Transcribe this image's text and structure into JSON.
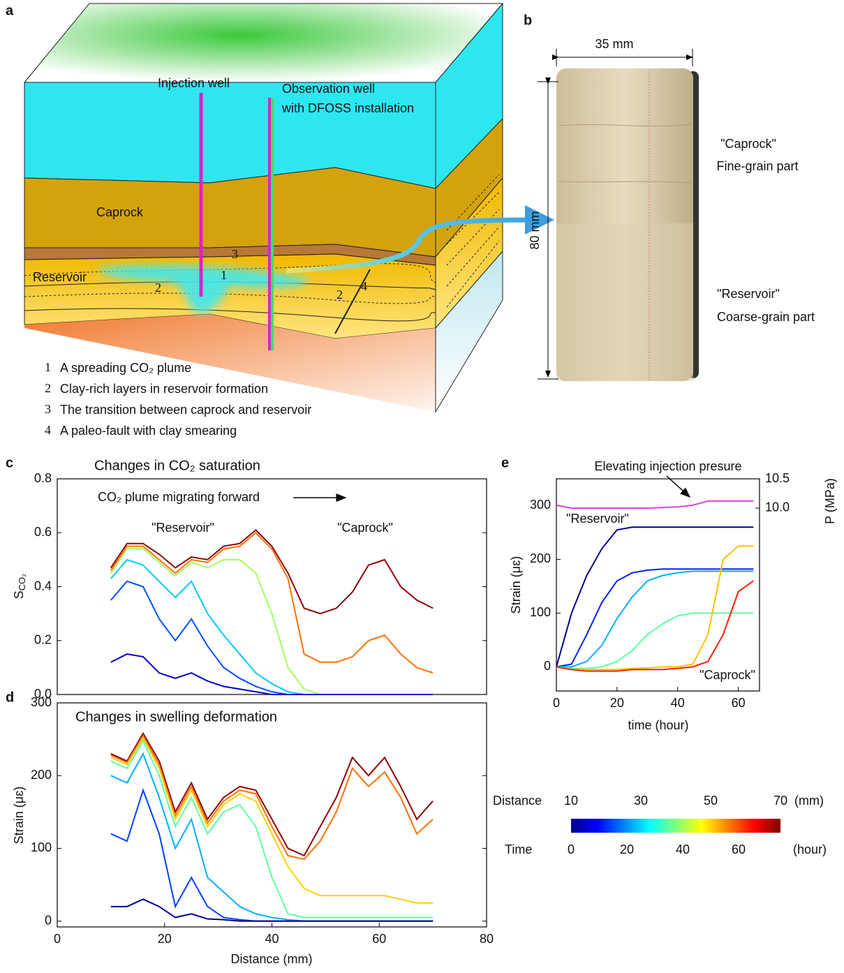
{
  "panel_labels": [
    "a",
    "b",
    "c",
    "d",
    "e"
  ],
  "diagram": {
    "injection_well": "Injection well",
    "observation_well": [
      "Observation well",
      "with DFOSS installation"
    ],
    "caprock": "Caprock",
    "reservoir": "Reservoir",
    "markers": [
      "3",
      "1",
      "2",
      "2",
      "4"
    ],
    "legend": [
      {
        "number": "1",
        "text": "A spreading CO₂ plume"
      },
      {
        "number": "2",
        "text": "Clay-rich layers in reservoir formation"
      },
      {
        "number": "3",
        "text": "The transition between caprock and reservoir"
      },
      {
        "number": "4",
        "text": "A paleo-fault with clay smearing"
      }
    ]
  },
  "sample": {
    "width": "35 mm",
    "height": "80 mm",
    "caprock": [
      "\"Caprock\"",
      "Fine-grain part"
    ],
    "reservoir": [
      "\"Reservoir\"",
      "Coarse-grain part"
    ]
  },
  "chart_data": [
    {
      "type": "line",
      "title": "Changes in CO₂ saturation",
      "ylabel": "S",
      "ylabel_sub": "CO₂",
      "annotations": [
        "CO₂ plume migrating forward",
        "\"Reservoir\"",
        "\"Caprock\""
      ],
      "x": [
        10,
        13,
        16,
        19,
        22,
        25,
        28,
        31,
        34,
        37,
        40,
        43,
        46,
        49,
        52,
        55,
        58,
        61,
        64,
        67,
        70
      ],
      "xlim": [
        0,
        80
      ],
      "ylim": [
        0,
        0.8
      ],
      "yticks": [
        {
          "value": 0,
          "label": "0.0"
        },
        0.2,
        0.4,
        0.6,
        0.8
      ],
      "series": [
        {
          "color": "#900000",
          "values": [
            0.47,
            0.56,
            0.56,
            0.52,
            0.47,
            0.51,
            0.5,
            0.55,
            0.56,
            0.61,
            0.55,
            0.45,
            0.32,
            0.3,
            0.32,
            0.38,
            0.48,
            0.5,
            0.4,
            0.35,
            0.32
          ]
        },
        {
          "color": "#ff7000",
          "values": [
            0.46,
            0.55,
            0.55,
            0.5,
            0.45,
            0.5,
            0.49,
            0.54,
            0.55,
            0.6,
            0.54,
            0.43,
            0.15,
            0.12,
            0.12,
            0.14,
            0.2,
            0.22,
            0.15,
            0.1,
            0.08
          ]
        },
        {
          "color": "#a0ff60",
          "values": [
            0.45,
            0.54,
            0.54,
            0.49,
            0.44,
            0.49,
            0.47,
            0.5,
            0.5,
            0.45,
            0.3,
            0.1,
            0.02,
            0,
            0,
            0,
            0,
            0,
            0,
            0,
            0
          ]
        },
        {
          "color": "#00c8ff",
          "values": [
            0.43,
            0.5,
            0.48,
            0.42,
            0.36,
            0.42,
            0.3,
            0.22,
            0.15,
            0.08,
            0.04,
            0.01,
            0,
            0,
            0,
            0,
            0,
            0,
            0,
            0,
            0
          ]
        },
        {
          "color": "#0050ff",
          "values": [
            0.35,
            0.42,
            0.4,
            0.28,
            0.2,
            0.28,
            0.18,
            0.1,
            0.06,
            0.03,
            0.01,
            0,
            0,
            0,
            0,
            0,
            0,
            0,
            0,
            0,
            0
          ]
        },
        {
          "color": "#0000c8",
          "values": [
            0.12,
            0.15,
            0.14,
            0.08,
            0.06,
            0.08,
            0.05,
            0.03,
            0.02,
            0.01,
            0,
            0,
            0,
            0,
            0,
            0,
            0,
            0,
            0,
            0,
            0
          ]
        }
      ]
    },
    {
      "type": "line",
      "title": "Changes in swelling deformation",
      "ylabel": "Strain (μɛ)",
      "xlabel": "Distance (mm)",
      "x": [
        10,
        13,
        16,
        19,
        22,
        25,
        28,
        31,
        34,
        37,
        40,
        43,
        46,
        49,
        52,
        55,
        58,
        61,
        64,
        67,
        70
      ],
      "xlim": [
        0,
        80
      ],
      "xticks": [
        0,
        20,
        40,
        60,
        80
      ],
      "ylim": [
        -8,
        300
      ],
      "yticks": [
        0,
        100,
        200,
        300
      ],
      "series": [
        {
          "color": "#900000",
          "values": [
            230,
            220,
            258,
            220,
            150,
            190,
            140,
            170,
            185,
            180,
            140,
            100,
            90,
            130,
            170,
            225,
            200,
            225,
            185,
            140,
            165
          ]
        },
        {
          "color": "#ff7000",
          "values": [
            228,
            218,
            255,
            215,
            145,
            185,
            135,
            165,
            180,
            175,
            130,
            90,
            85,
            110,
            150,
            210,
            185,
            205,
            170,
            120,
            140
          ]
        },
        {
          "color": "#ffd000",
          "values": [
            225,
            215,
            252,
            210,
            140,
            180,
            130,
            160,
            175,
            165,
            120,
            75,
            45,
            35,
            35,
            35,
            35,
            35,
            30,
            25,
            25
          ]
        },
        {
          "color": "#60ffa0",
          "values": [
            220,
            210,
            248,
            200,
            130,
            170,
            120,
            150,
            160,
            130,
            60,
            10,
            5,
            5,
            5,
            5,
            5,
            5,
            5,
            5,
            5
          ]
        },
        {
          "color": "#00b0ff",
          "values": [
            200,
            190,
            230,
            170,
            100,
            140,
            60,
            40,
            20,
            10,
            5,
            2,
            0,
            0,
            0,
            0,
            0,
            0,
            0,
            0,
            0
          ]
        },
        {
          "color": "#0040ff",
          "values": [
            120,
            110,
            180,
            120,
            20,
            60,
            20,
            5,
            2,
            0,
            0,
            0,
            0,
            0,
            0,
            0,
            0,
            0,
            0,
            0,
            0
          ]
        },
        {
          "color": "#000090",
          "values": [
            20,
            20,
            30,
            20,
            5,
            10,
            3,
            2,
            0,
            0,
            0,
            0,
            0,
            0,
            0,
            0,
            0,
            0,
            0,
            0,
            0
          ]
        }
      ]
    },
    {
      "type": "line",
      "ylabel": "Strain (μɛ)",
      "y2label": "P (MPa)",
      "xlabel": "time (hour)",
      "annotations": [
        "Elevating injection presure",
        "\"Reservoir\"",
        "\"Caprock\""
      ],
      "x": [
        0,
        5,
        10,
        15,
        20,
        25,
        30,
        35,
        40,
        45,
        50,
        55,
        60,
        65
      ],
      "xlim": [
        0,
        67
      ],
      "xticks": [
        0,
        20,
        40,
        60
      ],
      "ylim": [
        -45,
        350
      ],
      "yticks": [
        0,
        100,
        200,
        300
      ],
      "y2lim": [
        6.88,
        10.5
      ],
      "y2ticks": [
        {
          "value": 10,
          "label": "10.0"
        },
        10.5
      ],
      "series": [
        {
          "color": "#000090",
          "values": [
            0,
            100,
            170,
            220,
            255,
            260,
            260,
            260,
            260,
            260,
            260,
            260,
            260,
            260
          ]
        },
        {
          "color": "#0020ff",
          "values": [
            0,
            5,
            60,
            120,
            160,
            175,
            180,
            182,
            182,
            182,
            182,
            182,
            182,
            182
          ]
        },
        {
          "color": "#00b0ff",
          "values": [
            0,
            0,
            10,
            40,
            90,
            130,
            160,
            170,
            175,
            178,
            178,
            178,
            178,
            178
          ]
        },
        {
          "color": "#60ffa0",
          "values": [
            0,
            -3,
            -3,
            0,
            10,
            30,
            60,
            80,
            95,
            100,
            100,
            100,
            100,
            100
          ]
        },
        {
          "color": "#ffc000",
          "values": [
            0,
            -5,
            -5,
            -5,
            -5,
            -3,
            -2,
            0,
            0,
            5,
            60,
            200,
            225,
            225
          ]
        },
        {
          "color": "#ff2000",
          "values": [
            0,
            -5,
            -8,
            -8,
            -8,
            -5,
            -5,
            -5,
            -3,
            0,
            10,
            60,
            140,
            160
          ]
        },
        {
          "color": "#e040e0",
          "axis": "y2",
          "values": [
            10.05,
            10.0,
            10.0,
            10.0,
            10.0,
            10.0,
            10.0,
            10.01,
            10.02,
            10.05,
            10.12,
            10.12,
            10.12,
            10.12
          ]
        }
      ]
    }
  ],
  "colorbar": {
    "colors": [
      "#00008f",
      "#0000ff",
      "#0080ff",
      "#00ffff",
      "#80ff80",
      "#ffff00",
      "#ff8000",
      "#ff0000",
      "#800000"
    ],
    "distance_label": "Distance",
    "distance_lim": [
      10,
      70
    ],
    "distance_ticks": [
      10,
      30,
      50,
      70
    ],
    "distance_unit": "(mm)",
    "time_label": "Time",
    "time_lim": [
      0,
      75
    ],
    "time_ticks": [
      0,
      20,
      40,
      60
    ],
    "time_unit": "(hour)"
  }
}
